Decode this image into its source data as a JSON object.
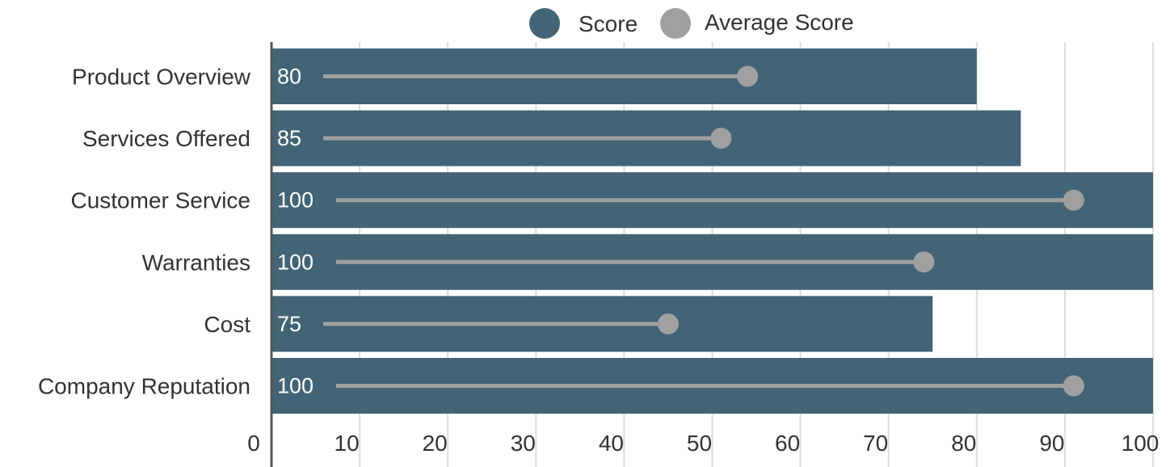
{
  "chart_data": {
    "type": "bar",
    "orientation": "horizontal",
    "categories": [
      "Product Overview",
      "Services Offered",
      "Customer Service",
      "Warranties",
      "Cost",
      "Company Reputation"
    ],
    "series": [
      {
        "name": "Score",
        "values": [
          80,
          85,
          100,
          100,
          75,
          100
        ],
        "color": "#426476"
      },
      {
        "name": "Average Score",
        "values": [
          54,
          51,
          91,
          74,
          45,
          91
        ],
        "color": "#a0a0a0"
      }
    ],
    "data_labels": [
      "80",
      "85",
      "100",
      "100",
      "75",
      "100"
    ],
    "xlim": [
      0,
      100
    ],
    "x_ticks": [
      0,
      10,
      20,
      30,
      40,
      50,
      60,
      70,
      80,
      90,
      100
    ],
    "grid": true,
    "legend_position": "top-center"
  },
  "legend": {
    "score": "Score",
    "average": "Average Score"
  }
}
